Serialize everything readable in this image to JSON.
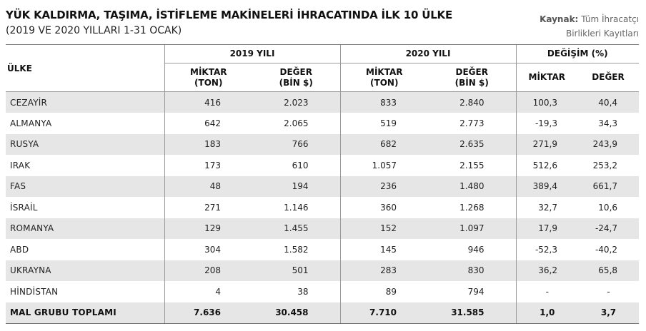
{
  "header": {
    "title": "YÜK KALDIRMA, TAŞIMA, İSTİFLEME MAKİNELERİ İHRACATINDA İLK 10 ÜLKE",
    "subtitle": "(2019 VE 2020 YILLARI 1-31 OCAK)",
    "source_label": "Kaynak:",
    "source_line1": "Tüm İhracatçı",
    "source_line2": "Birlikleri Kayıtları"
  },
  "table": {
    "col_country": "ÜLKE",
    "group_2019": "2019 YILI",
    "group_2020": "2020 YILI",
    "group_change": "DEĞİŞİM (%)",
    "sub_qty_a": "MİKTAR",
    "sub_qty_b": "(TON)",
    "sub_val_a": "DEĞER",
    "sub_val_b": "(BİN $)",
    "sub_change_qty": "MİKTAR",
    "sub_change_val": "DEĞER",
    "rows": [
      {
        "country": "CEZAYİR",
        "q2019": "416",
        "v2019": "2.023",
        "q2020": "833",
        "v2020": "2.840",
        "dq": "100,3",
        "dv": "40,4"
      },
      {
        "country": "ALMANYA",
        "q2019": "642",
        "v2019": "2.065",
        "q2020": "519",
        "v2020": "2.773",
        "dq": "-19,3",
        "dv": "34,3"
      },
      {
        "country": "RUSYA",
        "q2019": "183",
        "v2019": "766",
        "q2020": "682",
        "v2020": "2.635",
        "dq": "271,9",
        "dv": "243,9"
      },
      {
        "country": "IRAK",
        "q2019": "173",
        "v2019": "610",
        "q2020": "1.057",
        "v2020": "2.155",
        "dq": "512,6",
        "dv": "253,2"
      },
      {
        "country": "FAS",
        "q2019": "48",
        "v2019": "194",
        "q2020": "236",
        "v2020": "1.480",
        "dq": "389,4",
        "dv": "661,7"
      },
      {
        "country": "İSRAİL",
        "q2019": "271",
        "v2019": "1.146",
        "q2020": "360",
        "v2020": "1.268",
        "dq": "32,7",
        "dv": "10,6"
      },
      {
        "country": "ROMANYA",
        "q2019": "129",
        "v2019": "1.455",
        "q2020": "152",
        "v2020": "1.097",
        "dq": "17,9",
        "dv": "-24,7"
      },
      {
        "country": "ABD",
        "q2019": "304",
        "v2019": "1.582",
        "q2020": "145",
        "v2020": "946",
        "dq": "-52,3",
        "dv": "-40,2"
      },
      {
        "country": "UKRAYNA",
        "q2019": "208",
        "v2019": "501",
        "q2020": "283",
        "v2020": "830",
        "dq": "36,2",
        "dv": "65,8"
      },
      {
        "country": "HİNDİSTAN",
        "q2019": "4",
        "v2019": "38",
        "q2020": "89",
        "v2020": "794",
        "dq": "-",
        "dv": "-"
      }
    ],
    "total": {
      "country": "MAL GRUBU TOPLAMI",
      "q2019": "7.636",
      "v2019": "30.458",
      "q2020": "7.710",
      "v2020": "31.585",
      "dq": "1,0",
      "dv": "3,7"
    }
  }
}
